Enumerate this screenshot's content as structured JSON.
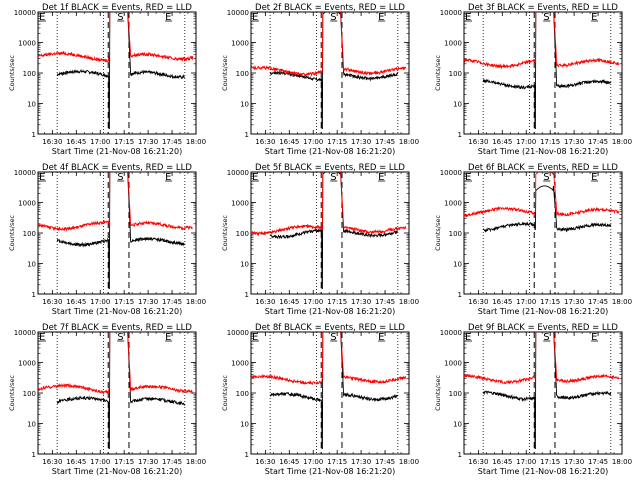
{
  "chart_data": [
    {
      "type": "line",
      "title": "Det 1f BLACK = Events, RED = LLD",
      "xlabel": "Start Time (21-Nov-08 16:21:20)",
      "ylabel": "Counts/sec",
      "yscale": "log",
      "ylim": [
        1,
        10000
      ],
      "xlim": [
        "16:21",
        "18:00"
      ],
      "x_ticks": [
        "16:30",
        "16:45",
        "17:00",
        "17:15",
        "17:30",
        "17:45",
        "18:00"
      ],
      "y_ticks": [
        "1",
        "10",
        "100",
        "1000",
        "10000"
      ],
      "markers": [
        "E",
        "S",
        "E"
      ],
      "marker_times": [
        "16:21",
        "17:10",
        "17:40"
      ],
      "dotted_times": [
        "16:33",
        "17:02",
        "17:53"
      ],
      "dashed_times": [
        "17:05",
        "17:18"
      ],
      "series": [
        {
          "color": "#000000",
          "x_start": "16:33",
          "x_end": "17:53",
          "baseline": 90,
          "peak_start": "17:06",
          "peak_end": "17:17",
          "peak": 15000,
          "gap_min": 1.5
        },
        {
          "color": "#ff0000",
          "x_start": "16:21",
          "x_end": "17:58",
          "baseline": 350,
          "peak_start": "17:06",
          "peak_end": "17:17",
          "peak": 15000
        }
      ]
    },
    {
      "type": "line",
      "title": "Det 2f BLACK = Events, RED = LLD",
      "xlabel": "Start Time (21-Nov-08 16:21:20)",
      "ylabel": "Counts/sec",
      "yscale": "log",
      "ylim": [
        1,
        10000
      ],
      "xlim": [
        "16:21",
        "18:00"
      ],
      "x_ticks": [
        "16:30",
        "16:45",
        "17:00",
        "17:15",
        "17:30",
        "17:45",
        "18:00"
      ],
      "y_ticks": [
        "1",
        "10",
        "100",
        "1000",
        "10000"
      ],
      "markers": [
        "E",
        "S",
        "E"
      ],
      "marker_times": [
        "16:21",
        "17:10",
        "17:40"
      ],
      "dotted_times": [
        "16:33",
        "17:02",
        "17:53"
      ],
      "dashed_times": [
        "17:05",
        "17:18"
      ],
      "series": [
        {
          "color": "#000000",
          "x_start": "16:33",
          "x_end": "17:53",
          "baseline": 80,
          "peak_start": "17:06",
          "peak_end": "17:17",
          "peak": 12000,
          "gap_min": 1.5
        },
        {
          "color": "#ff0000",
          "x_start": "16:21",
          "x_end": "17:58",
          "baseline": 120,
          "peak_start": "17:06",
          "peak_end": "17:17",
          "peak": 15000
        }
      ]
    },
    {
      "type": "line",
      "title": "Det 3f BLACK = Events, RED = LLD",
      "xlabel": "Start Time (21-Nov-08 16:21:20)",
      "ylabel": "Counts/sec",
      "yscale": "log",
      "ylim": [
        1,
        10000
      ],
      "xlim": [
        "16:21",
        "18:00"
      ],
      "x_ticks": [
        "16:30",
        "16:45",
        "17:00",
        "17:15",
        "17:30",
        "17:45",
        "18:00"
      ],
      "y_ticks": [
        "1",
        "10",
        "100",
        "1000",
        "10000"
      ],
      "markers": [
        "E",
        "S",
        "E"
      ],
      "marker_times": [
        "16:21",
        "17:10",
        "17:40"
      ],
      "dotted_times": [
        "16:33",
        "17:02",
        "17:53"
      ],
      "dashed_times": [
        "17:05",
        "17:18"
      ],
      "series": [
        {
          "color": "#000000",
          "x_start": "16:33",
          "x_end": "17:53",
          "baseline": 45,
          "peak_start": "17:06",
          "peak_end": "17:17",
          "peak": 15000,
          "gap_min": 1.5
        },
        {
          "color": "#ff0000",
          "x_start": "16:21",
          "x_end": "17:58",
          "baseline": 220,
          "peak_start": "17:06",
          "peak_end": "17:17",
          "peak": 15000
        }
      ]
    },
    {
      "type": "line",
      "title": "Det 4f BLACK = Events, RED = LLD",
      "xlabel": "Start Time (21-Nov-08 16:21:20)",
      "ylabel": "Counts/sec",
      "yscale": "log",
      "ylim": [
        1,
        10000
      ],
      "xlim": [
        "16:21",
        "18:00"
      ],
      "x_ticks": [
        "16:30",
        "16:45",
        "17:00",
        "17:15",
        "17:30",
        "17:45",
        "18:00"
      ],
      "y_ticks": [
        "1",
        "10",
        "100",
        "1000",
        "10000"
      ],
      "markers": [
        "E",
        "S",
        "E"
      ],
      "marker_times": [
        "16:21",
        "17:10",
        "17:40"
      ],
      "dotted_times": [
        "16:33",
        "17:02",
        "17:53"
      ],
      "dashed_times": [
        "17:05",
        "17:18"
      ],
      "series": [
        {
          "color": "#000000",
          "x_start": "16:33",
          "x_end": "17:53",
          "baseline": 55,
          "peak_start": "17:06",
          "peak_end": "17:17",
          "peak": 15000,
          "gap_min": 1.5
        },
        {
          "color": "#ff0000",
          "x_start": "16:21",
          "x_end": "17:58",
          "baseline": 180,
          "peak_start": "17:06",
          "peak_end": "17:17",
          "peak": 15000
        }
      ]
    },
    {
      "type": "line",
      "title": "Det 5f BLACK = Events, RED = LLD",
      "xlabel": "Start Time (21-Nov-08 16:21:20)",
      "ylabel": "Counts/sec",
      "yscale": "log",
      "ylim": [
        1,
        10000
      ],
      "xlim": [
        "16:21",
        "18:00"
      ],
      "x_ticks": [
        "16:30",
        "16:45",
        "17:00",
        "17:15",
        "17:30",
        "17:45",
        "18:00"
      ],
      "y_ticks": [
        "1",
        "10",
        "100",
        "1000",
        "10000"
      ],
      "markers": [
        "E",
        "S",
        "E"
      ],
      "marker_times": [
        "16:21",
        "17:10",
        "17:40"
      ],
      "dotted_times": [
        "16:33",
        "17:02",
        "17:53"
      ],
      "dashed_times": [
        "17:05",
        "17:18"
      ],
      "series": [
        {
          "color": "#000000",
          "x_start": "16:33",
          "x_end": "17:53",
          "baseline": 100,
          "peak_start": "17:06",
          "peak_end": "17:17",
          "peak": 12000,
          "gap_min": 1.5
        },
        {
          "color": "#ff0000",
          "x_start": "16:21",
          "x_end": "17:58",
          "baseline": 130,
          "peak_start": "17:06",
          "peak_end": "17:17",
          "peak": 15000
        }
      ]
    },
    {
      "type": "line",
      "title": "Det 6f BLACK = Events, RED = LLD",
      "xlabel": "Start Time (21-Nov-08 16:21:20)",
      "ylabel": "Counts/sec",
      "yscale": "log",
      "ylim": [
        1,
        10000
      ],
      "xlim": [
        "16:21",
        "18:00"
      ],
      "x_ticks": [
        "16:30",
        "16:45",
        "17:00",
        "17:15",
        "17:30",
        "17:45",
        "18:00"
      ],
      "y_ticks": [
        "1",
        "10",
        "100",
        "1000",
        "10000"
      ],
      "markers": [
        "E",
        "S",
        "E"
      ],
      "marker_times": [
        "16:21",
        "17:10",
        "17:40"
      ],
      "dotted_times": [
        "16:33",
        "17:02",
        "17:53"
      ],
      "dashed_times": [
        "17:05",
        "17:18"
      ],
      "series": [
        {
          "color": "#000000",
          "x_start": "16:33",
          "x_end": "17:53",
          "baseline": 160,
          "peak_start": "17:06",
          "peak_end": "17:17",
          "peak": 3500,
          "gap_min": 130
        },
        {
          "color": "#ff0000",
          "x_start": "16:21",
          "x_end": "17:58",
          "baseline": 500,
          "peak_start": "17:06",
          "peak_end": "17:17",
          "peak": 12000
        }
      ]
    },
    {
      "type": "line",
      "title": "Det 7f BLACK = Events, RED = LLD",
      "xlabel": "Start Time (21-Nov-08 16:21:20)",
      "ylabel": "Counts/sec",
      "yscale": "log",
      "ylim": [
        1,
        10000
      ],
      "xlim": [
        "16:21",
        "18:00"
      ],
      "x_ticks": [
        "16:30",
        "16:45",
        "17:00",
        "17:15",
        "17:30",
        "17:45",
        "18:00"
      ],
      "y_ticks": [
        "1",
        "10",
        "100",
        "1000",
        "10000"
      ],
      "markers": [
        "E",
        "S",
        "E"
      ],
      "marker_times": [
        "16:21",
        "17:10",
        "17:40"
      ],
      "dotted_times": [
        "16:33",
        "17:02",
        "17:53"
      ],
      "dashed_times": [
        "17:05",
        "17:18"
      ],
      "series": [
        {
          "color": "#000000",
          "x_start": "16:33",
          "x_end": "17:53",
          "baseline": 55,
          "peak_start": "17:06",
          "peak_end": "17:17",
          "peak": 15000,
          "gap_min": 1.5
        },
        {
          "color": "#ff0000",
          "x_start": "16:21",
          "x_end": "17:58",
          "baseline": 140,
          "peak_start": "17:06",
          "peak_end": "17:17",
          "peak": 15000
        }
      ]
    },
    {
      "type": "line",
      "title": "Det 8f BLACK = Events, RED = LLD",
      "xlabel": "Start Time (21-Nov-08 16:21:20)",
      "ylabel": "Counts/sec",
      "yscale": "log",
      "ylim": [
        1,
        10000
      ],
      "xlim": [
        "16:21",
        "18:00"
      ],
      "x_ticks": [
        "16:30",
        "16:45",
        "17:00",
        "17:15",
        "17:30",
        "17:45",
        "18:00"
      ],
      "y_ticks": [
        "1",
        "10",
        "100",
        "1000",
        "10000"
      ],
      "markers": [
        "E",
        "S",
        "E"
      ],
      "marker_times": [
        "16:21",
        "17:10",
        "17:40"
      ],
      "dotted_times": [
        "16:33",
        "17:02",
        "17:53"
      ],
      "dashed_times": [
        "17:05",
        "17:18"
      ],
      "series": [
        {
          "color": "#000000",
          "x_start": "16:33",
          "x_end": "17:53",
          "baseline": 75,
          "peak_start": "17:06",
          "peak_end": "17:17",
          "peak": 15000,
          "gap_min": 1.5
        },
        {
          "color": "#ff0000",
          "x_start": "16:21",
          "x_end": "17:58",
          "baseline": 280,
          "peak_start": "17:06",
          "peak_end": "17:17",
          "peak": 15000
        }
      ]
    },
    {
      "type": "line",
      "title": "Det 9f BLACK = Events, RED = LLD",
      "xlabel": "Start Time (21-Nov-08 16:21:20)",
      "ylabel": "Counts/sec",
      "yscale": "log",
      "ylim": [
        1,
        10000
      ],
      "xlim": [
        "16:21",
        "18:00"
      ],
      "x_ticks": [
        "16:30",
        "16:45",
        "17:00",
        "17:15",
        "17:30",
        "17:45",
        "18:00"
      ],
      "y_ticks": [
        "1",
        "10",
        "100",
        "1000",
        "10000"
      ],
      "markers": [
        "E",
        "S",
        "E"
      ],
      "marker_times": [
        "16:21",
        "17:10",
        "17:40"
      ],
      "dotted_times": [
        "16:33",
        "17:02",
        "17:53"
      ],
      "dashed_times": [
        "17:05",
        "17:18"
      ],
      "series": [
        {
          "color": "#000000",
          "x_start": "16:33",
          "x_end": "17:53",
          "baseline": 85,
          "peak_start": "17:06",
          "peak_end": "17:17",
          "peak": 15000,
          "gap_min": 1.5
        },
        {
          "color": "#ff0000",
          "x_start": "16:21",
          "x_end": "17:58",
          "baseline": 300,
          "peak_start": "17:06",
          "peak_end": "17:17",
          "peak": 15000
        }
      ]
    }
  ]
}
